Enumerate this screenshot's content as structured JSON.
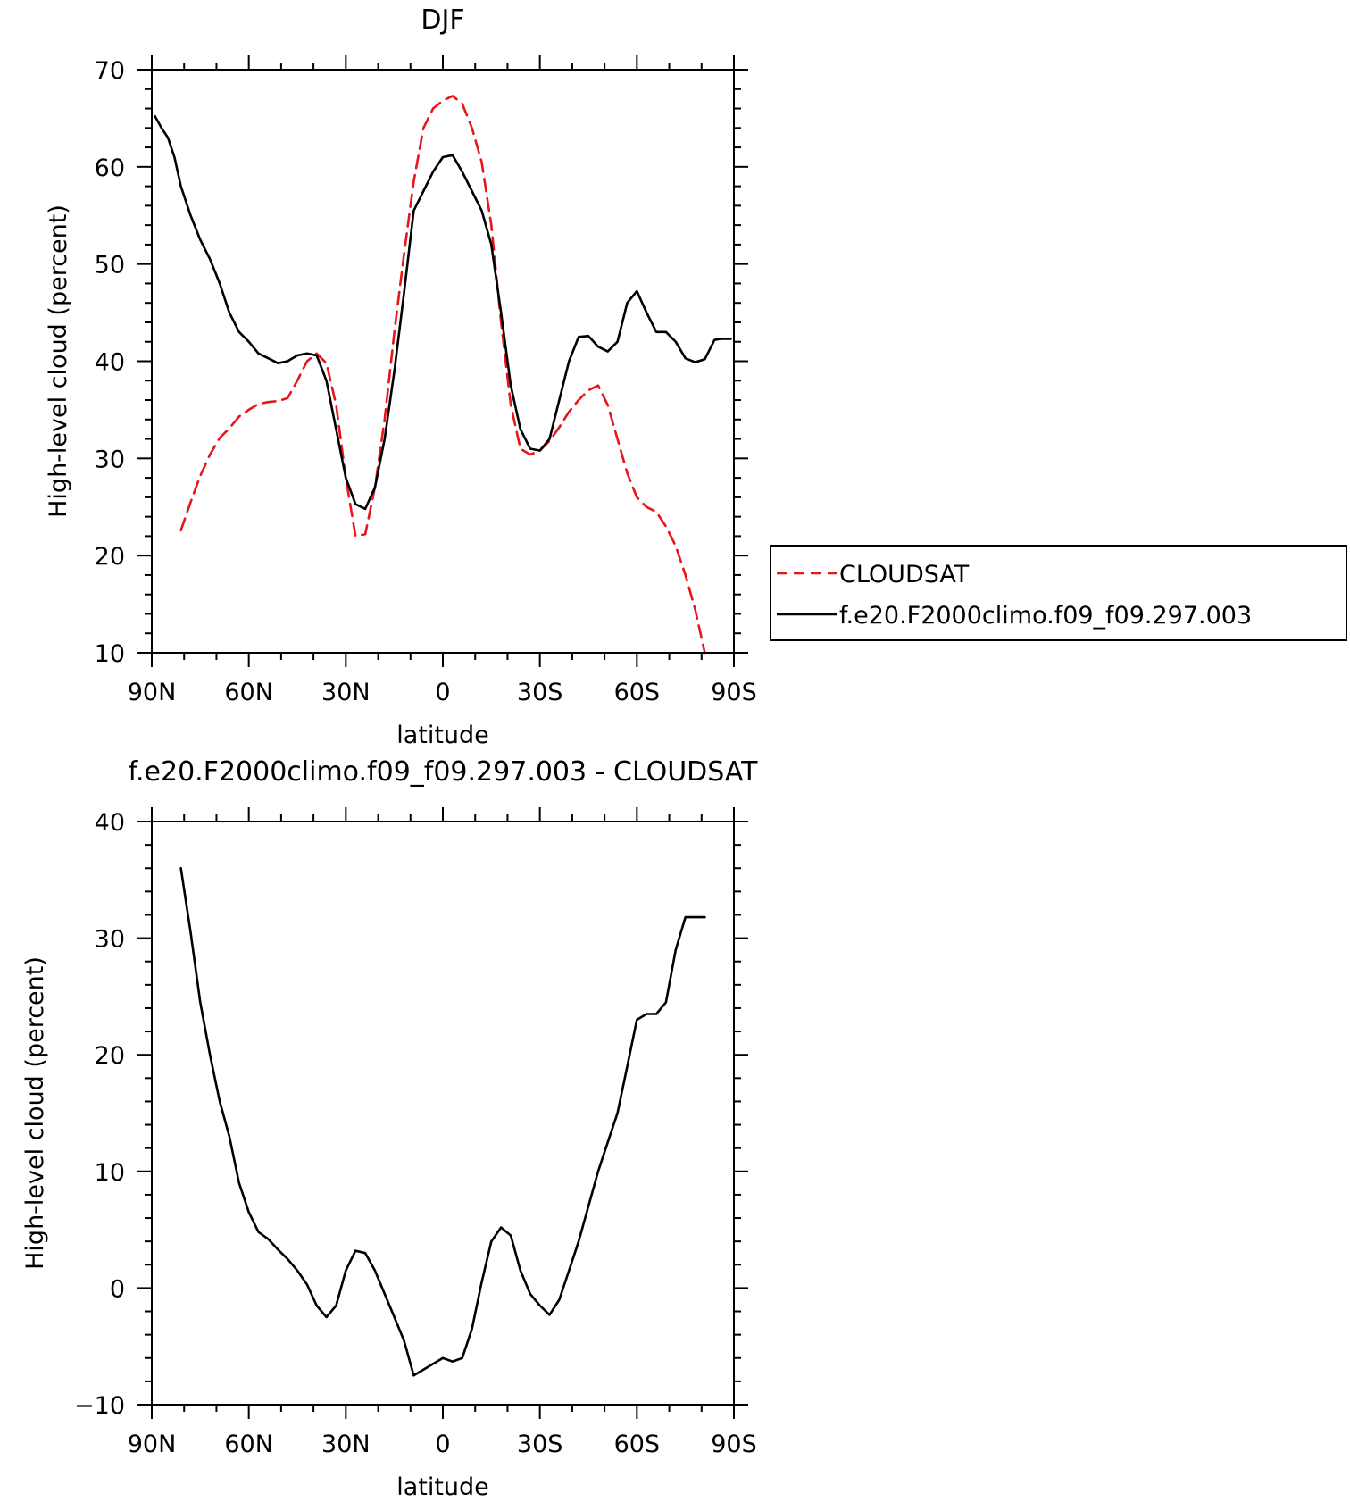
{
  "chart_data": [
    {
      "type": "line",
      "title": "DJF",
      "xlabel": "latitude",
      "ylabel": "High-level cloud (percent)",
      "xlim": [
        90,
        -90
      ],
      "ylim": [
        10,
        70
      ],
      "xticks": [
        90,
        60,
        30,
        0,
        -30,
        -60,
        -90
      ],
      "xtick_labels": [
        "90N",
        "60N",
        "30N",
        "0",
        "30S",
        "60S",
        "90S"
      ],
      "yticks": [
        10,
        20,
        30,
        40,
        50,
        60,
        70
      ],
      "ytick_labels": [
        "10",
        "20",
        "30",
        "40",
        "50",
        "60",
        "70"
      ],
      "legend_position": "right",
      "series": [
        {
          "name": "CLOUDSAT",
          "color": "#e8151b",
          "dash": "dashed",
          "x": [
            81,
            78,
            75,
            72,
            69,
            66,
            63,
            60,
            57,
            54,
            51,
            48,
            45,
            42,
            39,
            36,
            33,
            30,
            27,
            24,
            21,
            18,
            15,
            12,
            9,
            6,
            3,
            0,
            -3,
            -6,
            -9,
            -12,
            -15,
            -18,
            -21,
            -24,
            -27,
            -30,
            -33,
            -36,
            -39,
            -42,
            -45,
            -48,
            -51,
            -54,
            -57,
            -60,
            -63,
            -66,
            -69,
            -72,
            -75,
            -78,
            -81
          ],
          "y": [
            22.6,
            25.5,
            28.2,
            30.4,
            32.1,
            33.1,
            34.3,
            35.0,
            35.6,
            35.8,
            35.9,
            36.2,
            38.0,
            40.0,
            40.8,
            39.8,
            35.5,
            28.0,
            22.0,
            22.2,
            27.0,
            34.0,
            43.0,
            51.0,
            58.5,
            64.0,
            66.0,
            66.8,
            67.3,
            66.5,
            64.0,
            60.5,
            54.0,
            44.0,
            35.5,
            31.0,
            30.4,
            30.8,
            31.8,
            33.2,
            34.8,
            36.0,
            37.0,
            37.5,
            35.5,
            32.0,
            28.5,
            26.0,
            25.0,
            24.5,
            23.0,
            21.0,
            18.0,
            14.5,
            10.0
          ]
        },
        {
          "name": "f.e20.F2000climo.f09_f09.297.003",
          "color": "#000000",
          "dash": "solid",
          "x": [
            89,
            87,
            85,
            83,
            81,
            78,
            75,
            72,
            69,
            66,
            63,
            60,
            57,
            54,
            51,
            48,
            45,
            42,
            39,
            36,
            33,
            30,
            27,
            24,
            21,
            18,
            15,
            12,
            9,
            6,
            3,
            0,
            -3,
            -6,
            -9,
            -12,
            -15,
            -18,
            -21,
            -24,
            -27,
            -30,
            -33,
            -36,
            -39,
            -42,
            -45,
            -48,
            -51,
            -54,
            -57,
            -60,
            -63,
            -66,
            -69,
            -72,
            -75,
            -78,
            -81,
            -84,
            -86,
            -88,
            -89
          ],
          "y": [
            65.2,
            64.0,
            63.0,
            61.0,
            58.0,
            55.0,
            52.5,
            50.5,
            48.0,
            45.0,
            43.0,
            42.0,
            40.8,
            40.3,
            39.8,
            40.0,
            40.6,
            40.8,
            40.6,
            38.0,
            33.0,
            28.0,
            25.3,
            24.8,
            27.0,
            32.0,
            39.0,
            47.0,
            55.5,
            57.5,
            59.5,
            61.0,
            61.2,
            59.5,
            57.5,
            55.5,
            52.0,
            45.0,
            37.5,
            33.0,
            31.0,
            30.8,
            32.0,
            36.0,
            40.0,
            42.5,
            42.6,
            41.5,
            41.0,
            42.0,
            46.0,
            47.2,
            45.0,
            43.0,
            43.0,
            42.0,
            40.3,
            39.9,
            40.2,
            42.2,
            42.3,
            42.3,
            42.3
          ]
        }
      ]
    },
    {
      "type": "line",
      "title": "f.e20.F2000climo.f09_f09.297.003 - CLOUDSAT",
      "xlabel": "latitude",
      "ylabel": "High-level cloud (percent)",
      "xlim": [
        90,
        -90
      ],
      "ylim": [
        -10,
        40
      ],
      "xticks": [
        90,
        60,
        30,
        0,
        -30,
        -60,
        -90
      ],
      "xtick_labels": [
        "90N",
        "60N",
        "30N",
        "0",
        "30S",
        "60S",
        "90S"
      ],
      "yticks": [
        -10,
        0,
        10,
        20,
        30,
        40
      ],
      "ytick_labels": [
        "−10",
        "0",
        "10",
        "20",
        "30",
        "40"
      ],
      "series": [
        {
          "color": "#000000",
          "dash": "solid",
          "x": [
            81,
            78,
            75,
            72,
            69,
            66,
            63,
            60,
            57,
            54,
            51,
            48,
            45,
            42,
            39,
            36,
            33,
            30,
            27,
            24,
            21,
            18,
            15,
            12,
            9,
            6,
            3,
            0,
            -3,
            -6,
            -9,
            -12,
            -15,
            -18,
            -21,
            -24,
            -27,
            -30,
            -33,
            -36,
            -39,
            -42,
            -45,
            -48,
            -51,
            -54,
            -57,
            -60,
            -63,
            -66,
            -69,
            -72,
            -75,
            -78,
            -81
          ],
          "y": [
            36.0,
            30.5,
            24.5,
            20.0,
            16.0,
            13.0,
            9.0,
            6.5,
            4.8,
            4.2,
            3.3,
            2.5,
            1.5,
            0.3,
            -1.5,
            -2.5,
            -1.5,
            1.5,
            3.2,
            3.0,
            1.5,
            -0.5,
            -2.5,
            -4.5,
            -7.5,
            -7.0,
            -6.5,
            -6.0,
            -6.3,
            -6.0,
            -3.5,
            0.5,
            4.0,
            5.2,
            4.5,
            1.5,
            -0.5,
            -1.5,
            -2.3,
            -1.0,
            1.5,
            4.0,
            7.0,
            10.0,
            12.5,
            15.0,
            19.0,
            23.0,
            23.5,
            23.5,
            24.5,
            29.0,
            31.8,
            31.8,
            31.8
          ]
        }
      ]
    }
  ]
}
